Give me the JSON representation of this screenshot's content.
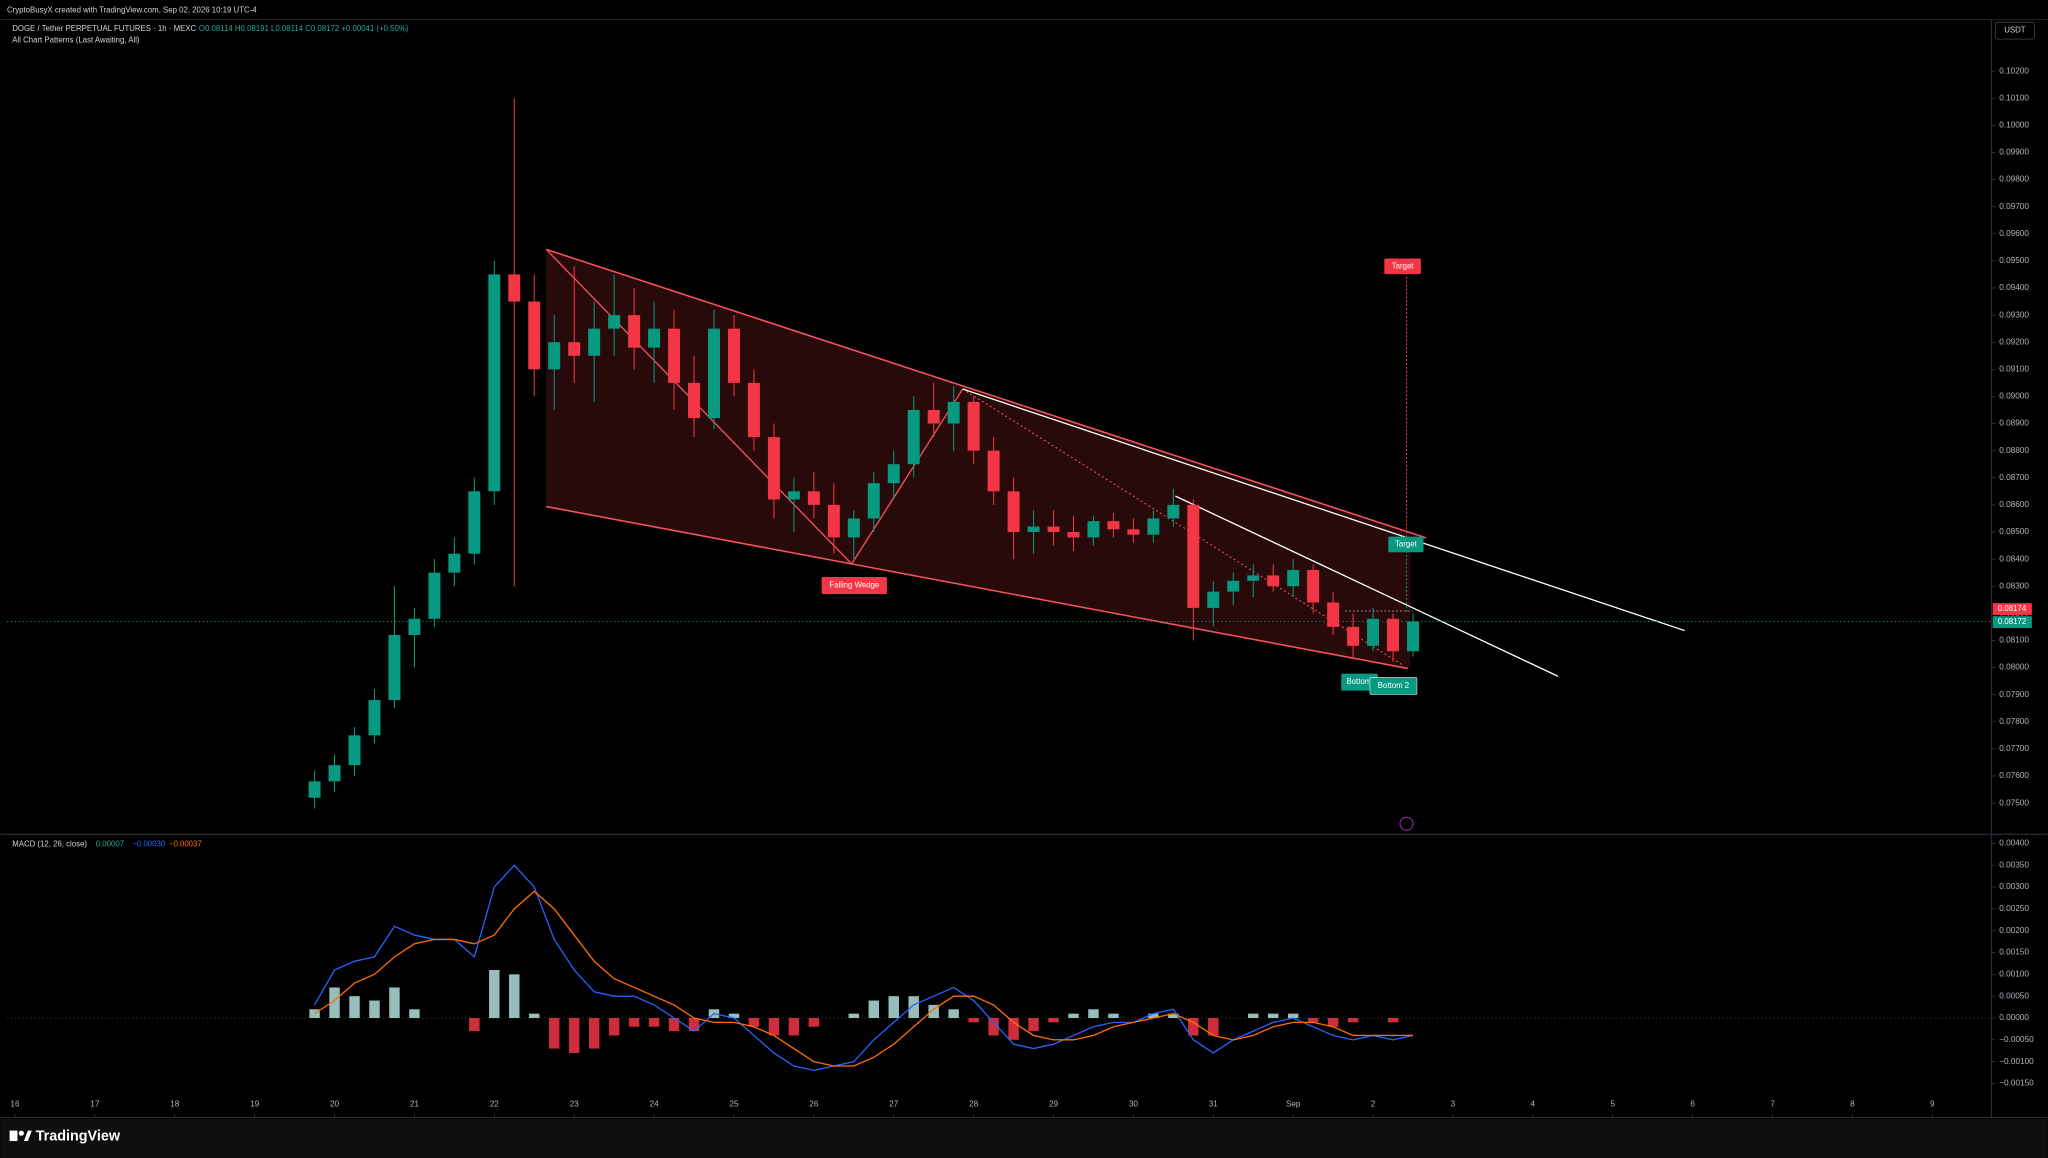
{
  "header": {
    "credit": "CryptoBusyX created with TradingView.com, Sep 02, 2026 10:19 UTC-4",
    "symbol": "DOGE / Tether PERPETUAL FUTURES · 1h · MEXC",
    "ohlc": "O0.08114 H0.08191 L0.08114 C0.08172 +0.00041 (+0.50%)",
    "indicator": "All Chart Patterns (Last Awaiting, All)",
    "currency": "USDT"
  },
  "annotations": {
    "pattern": "Falling Wedge",
    "target_1": "Target",
    "target_2": "Target",
    "bottom_1": "Bottom",
    "bottom_2": "Bottom 2",
    "price_badge_1": "0.08174",
    "price_badge_2": "0.08172"
  },
  "footer": {
    "brand": "TradingView"
  },
  "chart_data": [
    {
      "type": "candlestick",
      "up_color": "#089981",
      "down_color": "#f23645",
      "x": [
        3.75,
        4,
        4.25,
        4.5,
        4.75,
        5,
        5.25,
        5.5,
        5.75,
        6,
        6.25,
        6.5,
        6.75,
        7,
        7.25,
        7.5,
        7.75,
        8,
        8.25,
        8.5,
        8.75,
        9,
        9.25,
        9.5,
        9.75,
        10,
        10.25,
        10.5,
        10.75,
        11,
        11.25,
        11.5,
        11.75,
        12,
        12.25,
        12.5,
        12.75,
        13,
        13.25,
        13.5,
        13.75,
        14,
        14.25,
        14.5,
        14.75,
        15,
        15.25,
        15.5,
        15.75,
        16,
        16.25,
        16.5,
        16.75,
        17,
        17.25,
        17.5
      ],
      "open": [
        0.0752,
        0.0758,
        0.0764,
        0.0775,
        0.0788,
        0.0812,
        0.0818,
        0.0835,
        0.0842,
        0.0865,
        0.0945,
        0.0935,
        0.091,
        0.092,
        0.0915,
        0.0925,
        0.093,
        0.0918,
        0.0925,
        0.0905,
        0.0892,
        0.0925,
        0.0905,
        0.0885,
        0.0862,
        0.0865,
        0.086,
        0.0848,
        0.0855,
        0.0868,
        0.0875,
        0.0895,
        0.089,
        0.0898,
        0.088,
        0.0865,
        0.085,
        0.0852,
        0.085,
        0.0848,
        0.0854,
        0.0851,
        0.0849,
        0.0855,
        0.086,
        0.0822,
        0.0828,
        0.0832,
        0.0834,
        0.083,
        0.0836,
        0.0824,
        0.0815,
        0.0808,
        0.0818,
        0.0806
      ],
      "high": [
        0.0762,
        0.0768,
        0.0778,
        0.0792,
        0.083,
        0.0822,
        0.084,
        0.0848,
        0.087,
        0.095,
        0.101,
        0.0945,
        0.093,
        0.0948,
        0.0935,
        0.0945,
        0.094,
        0.0935,
        0.0932,
        0.0915,
        0.0932,
        0.093,
        0.091,
        0.089,
        0.087,
        0.0872,
        0.0868,
        0.0858,
        0.0872,
        0.088,
        0.09,
        0.0905,
        0.0904,
        0.09,
        0.0885,
        0.087,
        0.0858,
        0.0858,
        0.0856,
        0.0856,
        0.0857,
        0.0855,
        0.0858,
        0.0866,
        0.0862,
        0.0832,
        0.0835,
        0.0838,
        0.0838,
        0.084,
        0.0838,
        0.0828,
        0.082,
        0.0822,
        0.082,
        0.082
      ],
      "low": [
        0.0748,
        0.0754,
        0.076,
        0.0772,
        0.0785,
        0.08,
        0.0815,
        0.083,
        0.0838,
        0.086,
        0.083,
        0.09,
        0.0895,
        0.0905,
        0.0898,
        0.0915,
        0.091,
        0.0905,
        0.0895,
        0.0885,
        0.0888,
        0.09,
        0.088,
        0.0855,
        0.085,
        0.0855,
        0.0842,
        0.084,
        0.085,
        0.0862,
        0.087,
        0.0885,
        0.088,
        0.0875,
        0.086,
        0.084,
        0.0842,
        0.0845,
        0.0843,
        0.0845,
        0.0848,
        0.0846,
        0.0846,
        0.0852,
        0.081,
        0.0815,
        0.0823,
        0.0826,
        0.0828,
        0.0826,
        0.082,
        0.0812,
        0.0803,
        0.0806,
        0.0802,
        0.0804
      ],
      "close": [
        0.0758,
        0.0764,
        0.0775,
        0.0788,
        0.0812,
        0.0818,
        0.0835,
        0.0842,
        0.0865,
        0.0945,
        0.0935,
        0.091,
        0.092,
        0.0915,
        0.0925,
        0.093,
        0.0918,
        0.0925,
        0.0905,
        0.0892,
        0.0925,
        0.0905,
        0.0885,
        0.0862,
        0.0865,
        0.086,
        0.0848,
        0.0855,
        0.0868,
        0.0875,
        0.0895,
        0.089,
        0.0898,
        0.088,
        0.0865,
        0.085,
        0.0852,
        0.085,
        0.0848,
        0.0854,
        0.0851,
        0.0849,
        0.0855,
        0.086,
        0.0822,
        0.0828,
        0.0832,
        0.0834,
        0.083,
        0.0836,
        0.0824,
        0.0815,
        0.0808,
        0.0818,
        0.0806,
        0.0817
      ],
      "xlim": [
        -0.1,
        24.74
      ],
      "xticks": [
        {
          "value": 0,
          "label": "16"
        },
        {
          "value": 1,
          "label": "17"
        },
        {
          "value": 2,
          "label": "18"
        },
        {
          "value": 3,
          "label": "19"
        },
        {
          "value": 4,
          "label": "20"
        },
        {
          "value": 5,
          "label": "21"
        },
        {
          "value": 6,
          "label": "22"
        },
        {
          "value": 7,
          "label": "23"
        },
        {
          "value": 8,
          "label": "24"
        },
        {
          "value": 9,
          "label": "25"
        },
        {
          "value": 10,
          "label": "26"
        },
        {
          "value": 11,
          "label": "27"
        },
        {
          "value": 12,
          "label": "28"
        },
        {
          "value": 13,
          "label": "29"
        },
        {
          "value": 14,
          "label": "30"
        },
        {
          "value": 15,
          "label": "31"
        },
        {
          "value": 16,
          "label": "Sep"
        },
        {
          "value": 17,
          "label": "2"
        },
        {
          "value": 18,
          "label": "3"
        },
        {
          "value": 19,
          "label": "4"
        },
        {
          "value": 20,
          "label": "5"
        },
        {
          "value": 21,
          "label": "6"
        },
        {
          "value": 22,
          "label": "7"
        },
        {
          "value": 23,
          "label": "8"
        },
        {
          "value": 24,
          "label": "9"
        }
      ],
      "ylim": [
        0.0739,
        0.1039
      ],
      "yticks": [
        {
          "value": 0.075,
          "label": "0.07500"
        },
        {
          "value": 0.076,
          "label": "0.07600"
        },
        {
          "value": 0.077,
          "label": "0.07700"
        },
        {
          "value": 0.078,
          "label": "0.07800"
        },
        {
          "value": 0.079,
          "label": "0.07900"
        },
        {
          "value": 0.08,
          "label": "0.08000"
        },
        {
          "value": 0.081,
          "label": "0.08100"
        },
        {
          "value": 0.082,
          "label": "0.08200"
        },
        {
          "value": 0.083,
          "label": "0.08300"
        },
        {
          "value": 0.084,
          "label": "0.08400"
        },
        {
          "value": 0.085,
          "label": "0.08500"
        },
        {
          "value": 0.086,
          "label": "0.08600"
        },
        {
          "value": 0.087,
          "label": "0.08700"
        },
        {
          "value": 0.088,
          "label": "0.08800"
        },
        {
          "value": 0.089,
          "label": "0.08900"
        },
        {
          "value": 0.09,
          "label": "0.09000"
        },
        {
          "value": 0.091,
          "label": "0.09100"
        },
        {
          "value": 0.092,
          "label": "0.09200"
        },
        {
          "value": 0.093,
          "label": "0.09300"
        },
        {
          "value": 0.094,
          "label": "0.09400"
        },
        {
          "value": 0.095,
          "label": "0.09500"
        },
        {
          "value": 0.096,
          "label": "0.09600"
        },
        {
          "value": 0.097,
          "label": "0.09700"
        },
        {
          "value": 0.098,
          "label": "0.09800"
        },
        {
          "value": 0.099,
          "label": "0.09900"
        },
        {
          "value": 0.1,
          "label": "0.10000"
        },
        {
          "value": 0.101,
          "label": "0.10100"
        },
        {
          "value": 0.102,
          "label": "0.10200"
        }
      ],
      "grid": false
    },
    {
      "type": "macd",
      "title": "MACD (12, 26, close)",
      "legend_values": [
        {
          "label": "0.00007",
          "color": "#22ab94"
        },
        {
          "label": "−0.00030",
          "color": "#2962ff"
        },
        {
          "label": "−0.00037",
          "color": "#ff6d00"
        }
      ],
      "x": [
        3.75,
        4,
        4.25,
        4.5,
        4.75,
        5,
        5.25,
        5.5,
        5.75,
        6,
        6.25,
        6.5,
        6.75,
        7,
        7.25,
        7.5,
        7.75,
        8,
        8.25,
        8.5,
        8.75,
        9,
        9.25,
        9.5,
        9.75,
        10,
        10.25,
        10.5,
        10.75,
        11,
        11.25,
        11.5,
        11.75,
        12,
        12.25,
        12.5,
        12.75,
        13,
        13.25,
        13.5,
        13.75,
        14,
        14.25,
        14.5,
        14.75,
        15,
        15.25,
        15.5,
        15.75,
        16,
        16.25,
        16.5,
        16.75,
        17,
        17.25,
        17.5
      ],
      "macd": {
        "color": "#2962ff",
        "values": [
          0.0003,
          0.0011,
          0.0013,
          0.0014,
          0.0021,
          0.0019,
          0.0018,
          0.0018,
          0.0014,
          0.003,
          0.0035,
          0.003,
          0.0018,
          0.0011,
          0.0006,
          0.0005,
          0.0005,
          0.0003,
          0,
          -0.0003,
          0.0001,
          0,
          -0.0004,
          -0.0008,
          -0.0011,
          -0.0012,
          -0.0011,
          -0.001,
          -0.0005,
          -0.0001,
          0.0003,
          0.0005,
          0.0007,
          0.0004,
          -0.0001,
          -0.0006,
          -0.0007,
          -0.0006,
          -0.0004,
          -0.0002,
          -0.0001,
          -0.0001,
          0.0001,
          0.0002,
          -0.0005,
          -0.0008,
          -0.0005,
          -0.0003,
          -0.0001,
          0,
          -0.0002,
          -0.0004,
          -0.0005,
          -0.0004,
          -0.0005,
          -0.0004
        ]
      },
      "signal": {
        "color": "#ff6d00",
        "values": [
          0.0001,
          0.0004,
          0.0008,
          0.001,
          0.0014,
          0.0017,
          0.0018,
          0.0018,
          0.0017,
          0.0019,
          0.0025,
          0.0029,
          0.0025,
          0.0019,
          0.0013,
          0.0009,
          0.0007,
          0.0005,
          0.0003,
          0,
          -0.0001,
          -0.0001,
          -0.0002,
          -0.0004,
          -0.0007,
          -0.001,
          -0.0011,
          -0.0011,
          -0.0009,
          -0.0006,
          -0.0002,
          0.0002,
          0.0005,
          0.0005,
          0.0003,
          -0.0001,
          -0.0004,
          -0.0005,
          -0.0005,
          -0.0004,
          -0.0002,
          -0.0001,
          0,
          0.0001,
          -0.0001,
          -0.0004,
          -0.0005,
          -0.0004,
          -0.0002,
          -0.0001,
          -0.0001,
          -0.0002,
          -0.0004,
          -0.0004,
          -0.0004,
          -0.0004
        ]
      },
      "histogram": {
        "up_color": "#b2dfdb",
        "down_color": "#f23645",
        "values": [
          0.0002,
          0.0007,
          0.0005,
          0.0004,
          0.0007,
          0.0002,
          0,
          0,
          -0.0003,
          0.0011,
          0.001,
          0.0001,
          -0.0007,
          -0.0008,
          -0.0007,
          -0.0004,
          -0.0002,
          -0.0002,
          -0.0003,
          -0.0003,
          0.0002,
          0.0001,
          -0.0002,
          -0.0004,
          -0.0004,
          -0.0002,
          0,
          0.0001,
          0.0004,
          0.0005,
          0.0005,
          0.0003,
          0.0002,
          -0.0001,
          -0.0004,
          -0.0005,
          -0.0003,
          -0.0001,
          0.0001,
          0.0002,
          0.0001,
          0,
          0.0001,
          0.0001,
          -0.0004,
          -0.0004,
          0,
          0.0001,
          0.0001,
          0.0001,
          -0.0001,
          -0.0002,
          -0.0001,
          0,
          -0.0001,
          0
        ]
      },
      "ylim": [
        -0.00225,
        0.00418
      ],
      "yticks": [
        {
          "value": 0.004,
          "label": "0.00400"
        },
        {
          "value": 0.0035,
          "label": "0.00350"
        },
        {
          "value": 0.003,
          "label": "0.00300"
        },
        {
          "value": 0.0025,
          "label": "0.00250"
        },
        {
          "value": 0.002,
          "label": "0.00200"
        },
        {
          "value": 0.0015,
          "label": "0.00150"
        },
        {
          "value": 0.001,
          "label": "0.00100"
        },
        {
          "value": 0.0005,
          "label": "0.00050"
        },
        {
          "value": 0,
          "label": "0.00000"
        },
        {
          "value": -0.0005,
          "label": "−0.00050"
        },
        {
          "value": -0.001,
          "label": "−0.00100"
        },
        {
          "value": -0.0015,
          "label": "−0.00150"
        }
      ]
    }
  ]
}
